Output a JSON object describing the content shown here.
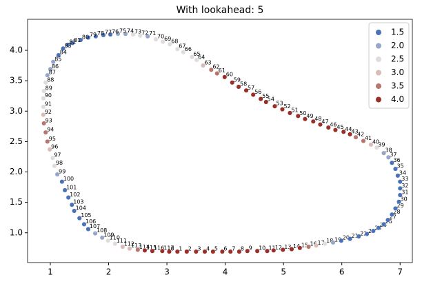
{
  "chart_data": {
    "type": "scatter",
    "title": "With lookahead: 5",
    "x": [
      3.04,
      3.18,
      3.34,
      3.5,
      3.65,
      3.79,
      3.95,
      4.09,
      4.24,
      4.38,
      4.55,
      4.72,
      4.83,
      4.99,
      5.14,
      5.28,
      5.43,
      5.56,
      5.71,
      5.85,
      5.99,
      6.14,
      6.29,
      6.43,
      6.54,
      6.63,
      6.72,
      6.79,
      6.86,
      6.92,
      6.98,
      7.0,
      7.0,
      7.0,
      6.96,
      6.92,
      6.86,
      6.8,
      6.72,
      6.6,
      6.5,
      6.37,
      6.24,
      6.14,
      6.03,
      5.89,
      5.77,
      5.63,
      5.51,
      5.37,
      5.25,
      5.11,
      4.98,
      4.85,
      4.7,
      4.61,
      4.48,
      4.36,
      4.23,
      4.12,
      3.99,
      3.86,
      3.76,
      3.62,
      3.51,
      3.43,
      3.28,
      3.18,
      3.05,
      2.93,
      2.81,
      2.67,
      2.54,
      2.42,
      2.29,
      2.16,
      2.03,
      1.91,
      1.78,
      1.65,
      1.52,
      1.38,
      1.3,
      1.22,
      1.14,
      1.05,
      1.0,
      0.95,
      0.92,
      0.89,
      0.88,
      0.88,
      0.88,
      0.89,
      0.92,
      0.95,
      0.99,
      1.04,
      1.07,
      1.12,
      1.2,
      1.25,
      1.31,
      1.37,
      1.41,
      1.5,
      1.58,
      1.65,
      1.77,
      1.89,
      1.99,
      2.11,
      2.24,
      2.36,
      2.5,
      2.62,
      2.75,
      2.92
    ],
    "y": [
      0.69,
      0.69,
      0.69,
      0.69,
      0.69,
      0.69,
      0.69,
      0.69,
      0.69,
      0.7,
      0.7,
      0.7,
      0.71,
      0.72,
      0.73,
      0.75,
      0.77,
      0.79,
      0.82,
      0.84,
      0.87,
      0.9,
      0.94,
      0.98,
      1.03,
      1.08,
      1.14,
      1.21,
      1.3,
      1.4,
      1.51,
      1.62,
      1.73,
      1.84,
      1.94,
      2.05,
      2.15,
      2.24,
      2.31,
      2.4,
      2.45,
      2.51,
      2.57,
      2.62,
      2.66,
      2.69,
      2.73,
      2.78,
      2.83,
      2.87,
      2.92,
      2.97,
      3.03,
      3.08,
      3.15,
      3.2,
      3.27,
      3.34,
      3.4,
      3.47,
      3.56,
      3.62,
      3.68,
      3.75,
      3.84,
      3.89,
      3.97,
      4.02,
      4.1,
      4.14,
      4.18,
      4.23,
      4.24,
      4.26,
      4.27,
      4.27,
      4.26,
      4.25,
      4.23,
      4.21,
      4.17,
      4.12,
      4.09,
      4.03,
      3.92,
      3.81,
      3.69,
      3.59,
      3.47,
      3.33,
      3.21,
      3.07,
      2.94,
      2.8,
      2.65,
      2.5,
      2.37,
      2.23,
      2.1,
      1.96,
      1.84,
      1.7,
      1.58,
      1.46,
      1.36,
      1.24,
      1.14,
      1.06,
      0.99,
      0.92,
      0.87,
      0.82,
      0.77,
      0.74,
      0.72,
      0.71,
      0.7,
      0.7
    ],
    "hue": [
      4,
      4,
      4,
      4,
      4,
      4,
      4,
      4,
      4,
      4,
      4,
      4,
      4,
      4,
      4,
      4,
      3.5,
      3,
      2.5,
      2,
      1.5,
      1.5,
      1.5,
      1.5,
      1.5,
      1.5,
      1.5,
      1.5,
      1.5,
      1.5,
      1.5,
      1.5,
      1.5,
      1.5,
      1.5,
      1.5,
      1.5,
      2,
      2,
      2.5,
      3,
      3.5,
      3.5,
      4,
      4,
      4,
      4,
      4,
      4,
      4,
      4,
      4,
      4,
      4,
      4,
      4,
      4,
      4,
      4,
      4,
      4,
      3.5,
      3.5,
      3,
      2.5,
      2.5,
      2.5,
      2.5,
      2.5,
      2.5,
      2.5,
      2,
      2.5,
      2.5,
      2,
      2,
      1.5,
      1.5,
      1.5,
      1.5,
      1.5,
      1.5,
      1.5,
      1.5,
      1.5,
      2,
      2,
      2,
      2.5,
      2.5,
      2.5,
      2.5,
      3,
      3.5,
      3.5,
      3.5,
      3,
      2.5,
      2.5,
      2,
      1.5,
      1.5,
      1.5,
      1.5,
      1.5,
      1.5,
      1.5,
      1.5,
      2,
      2,
      2.5,
      2.5,
      3,
      3,
      3.5,
      4,
      4,
      4
    ],
    "point_labels": [
      0,
      1,
      2,
      3,
      4,
      5,
      6,
      7,
      8,
      9,
      10,
      11,
      12,
      13,
      14,
      15,
      16,
      17,
      18,
      19,
      20,
      21,
      22,
      23,
      24,
      25,
      26,
      27,
      28,
      29,
      30,
      31,
      32,
      33,
      34,
      35,
      36,
      37,
      38,
      39,
      40,
      41,
      42,
      43,
      44,
      45,
      46,
      47,
      48,
      49,
      50,
      51,
      52,
      53,
      54,
      55,
      56,
      57,
      58,
      59,
      60,
      61,
      62,
      63,
      64,
      65,
      66,
      67,
      68,
      69,
      70,
      71,
      72,
      73,
      74,
      75,
      76,
      77,
      78,
      79,
      80,
      81,
      82,
      83,
      84,
      85,
      86,
      87,
      88,
      89,
      90,
      91,
      92,
      93,
      94,
      95,
      96,
      97,
      98,
      99,
      100,
      101,
      102,
      103,
      104,
      105,
      106,
      107,
      108,
      109,
      110,
      111,
      112,
      113,
      114,
      115,
      116,
      117
    ],
    "xlim": [
      0.61,
      7.21
    ],
    "ylim": [
      0.51,
      4.51
    ],
    "xticks": [
      1,
      2,
      3,
      4,
      5,
      6,
      7
    ],
    "yticks": [
      {
        "value": 1,
        "label": "1.0"
      },
      1.5,
      {
        "value": 2,
        "label": "2.0"
      },
      2.5,
      {
        "value": 3,
        "label": "3.0"
      },
      3.5,
      {
        "value": 4,
        "label": "4.0"
      }
    ],
    "legend": {
      "position": "upper right",
      "levels": [
        1.5,
        {
          "value": 2,
          "label": "2.0"
        },
        2.5,
        {
          "value": 3,
          "label": "3.0"
        },
        3.5,
        {
          "value": 4,
          "label": "4.0"
        }
      ],
      "colors": [
        "#4a72b8",
        "#95a6c8",
        "#e1dcdc",
        "#d9bcb8",
        "#b8766e",
        "#9a2f2a"
      ]
    }
  }
}
